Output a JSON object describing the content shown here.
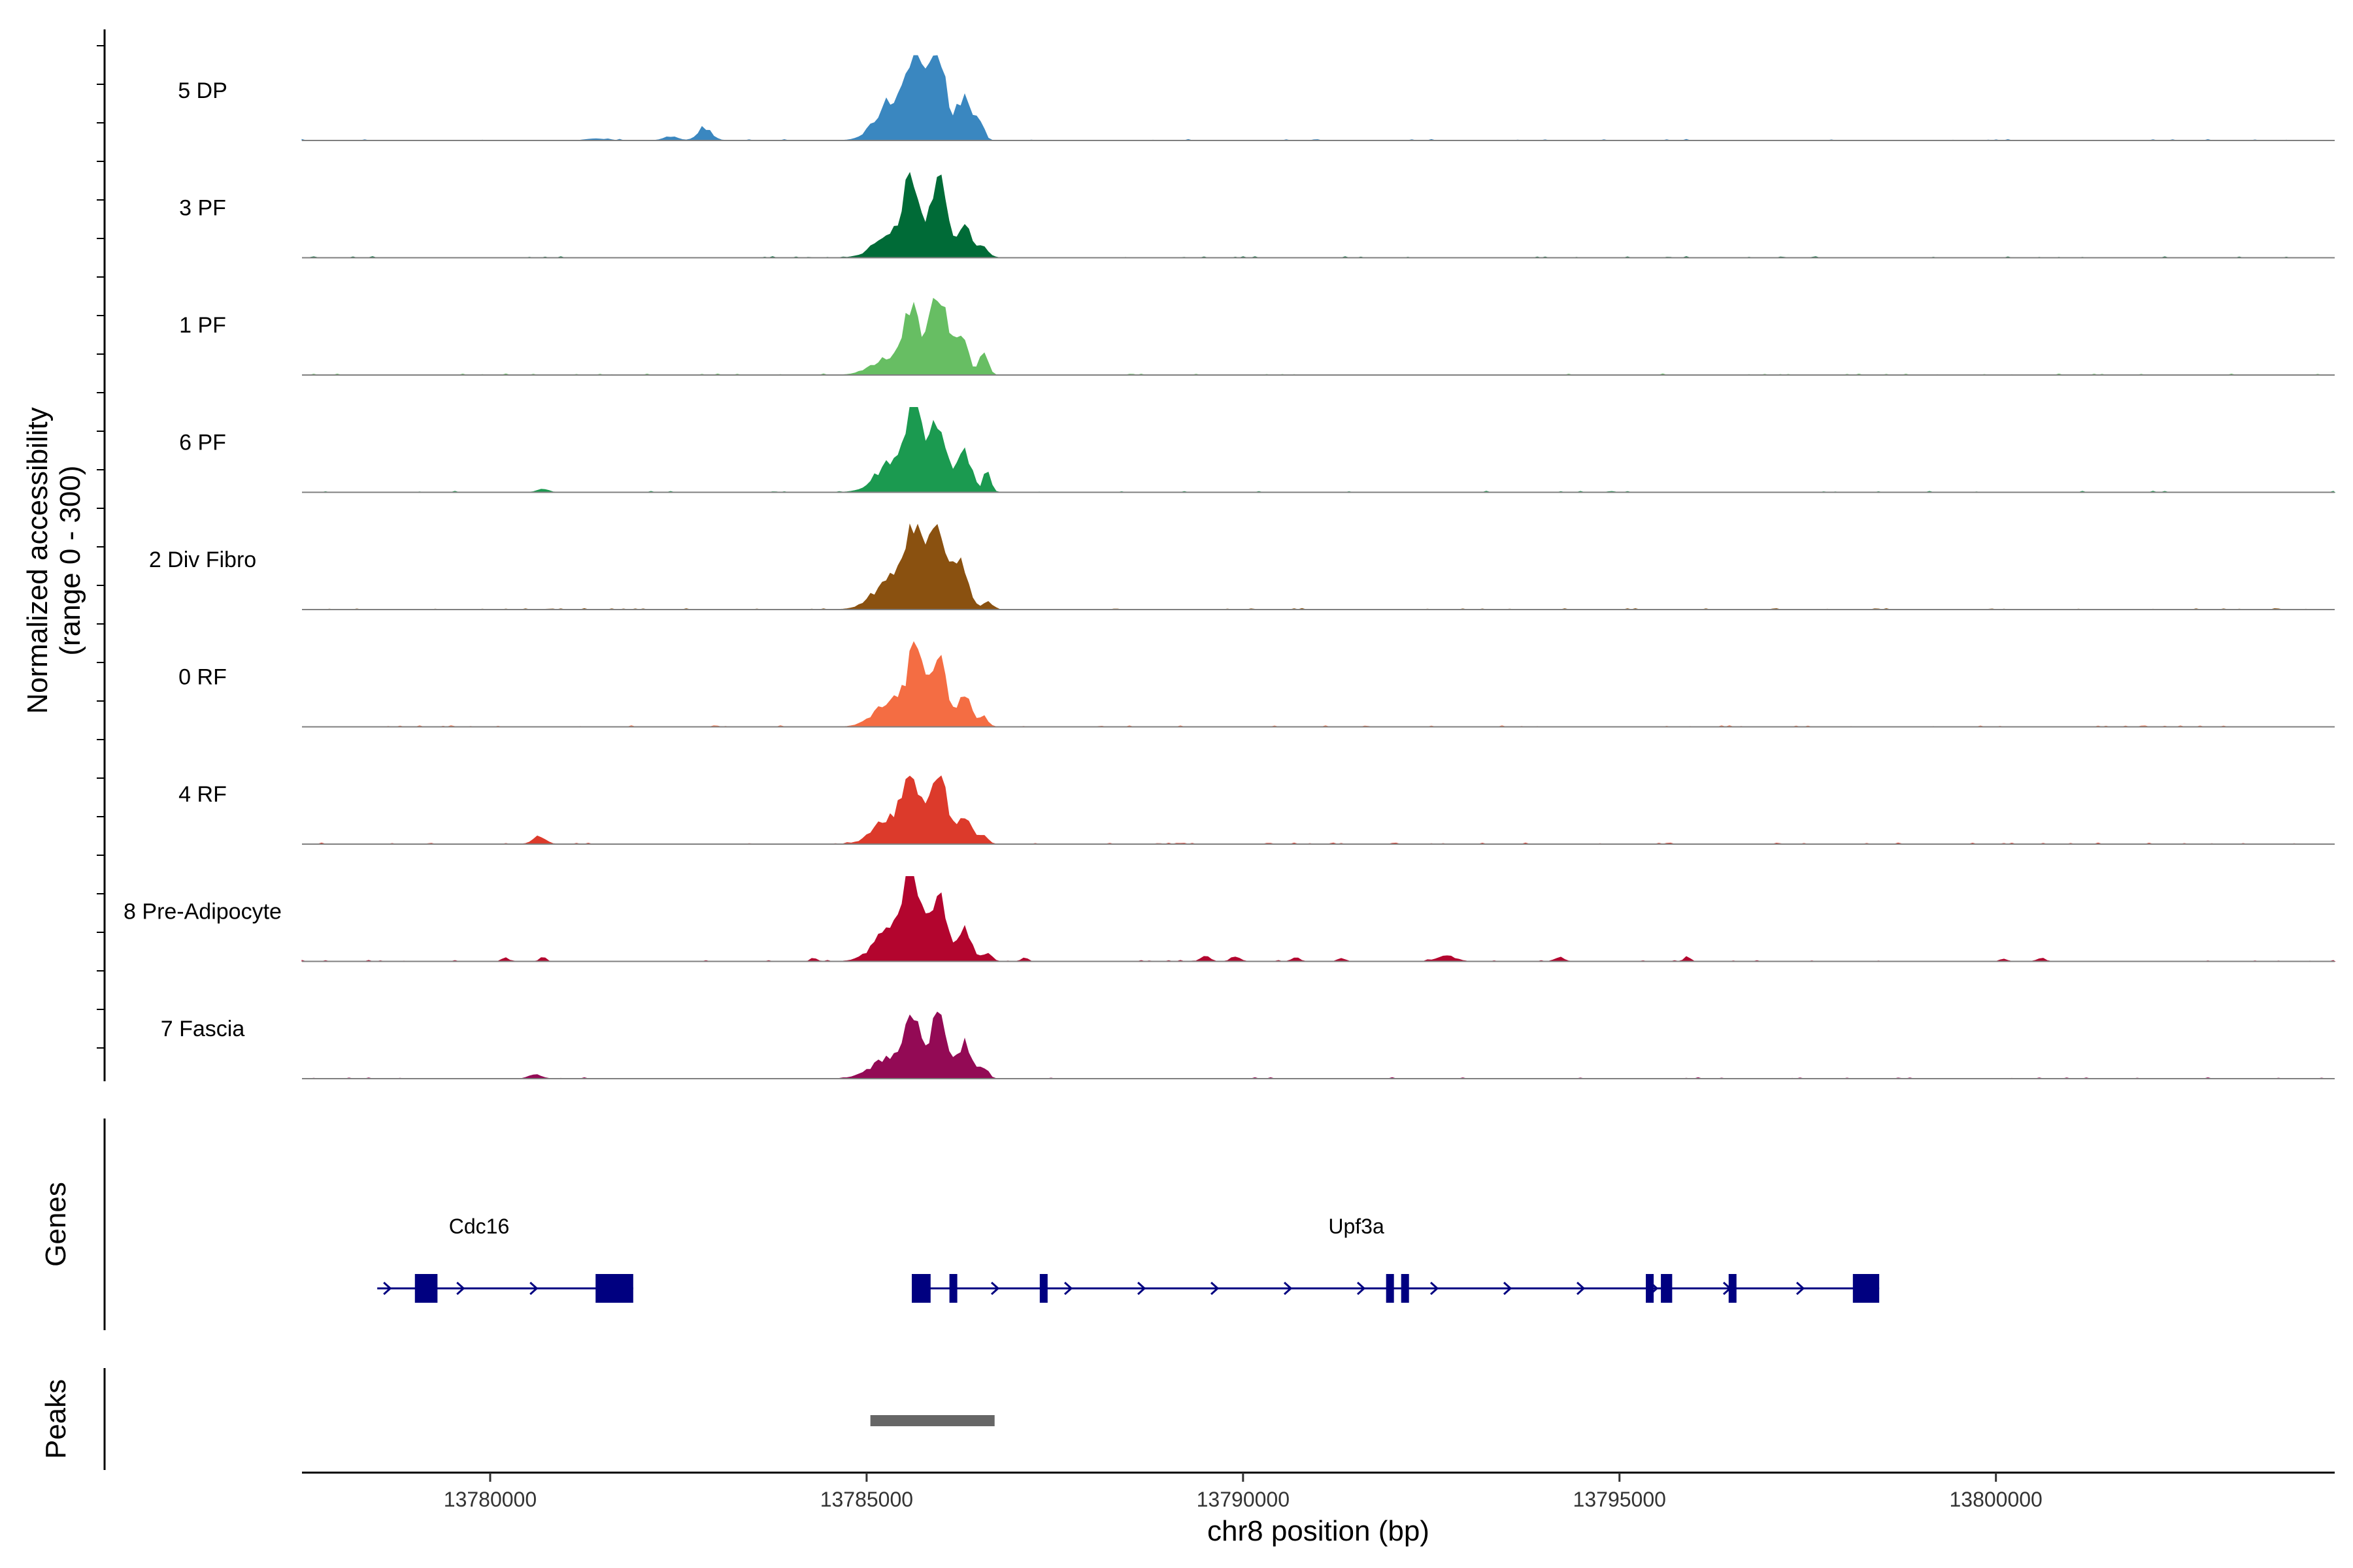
{
  "chart_data": {
    "type": "area",
    "title": "",
    "ylabel": "Normalized accessibility",
    "ylabel_range": "(range 0 - 300)",
    "xlabel": "chr8 position (bp)",
    "xlim": [
      13777500,
      13804500
    ],
    "ylim": [
      0,
      300
    ],
    "x_ticks": [
      13780000,
      13785000,
      13790000,
      13795000,
      13800000
    ],
    "x_tick_labels": [
      "13780000",
      "13785000",
      "13790000",
      "13795000",
      "13800000"
    ],
    "tracks": [
      {
        "name": "5 DP",
        "color": "#3A87C0",
        "peaks": [
          [
            13785350,
            140,
            210
          ],
          [
            13785650,
            290,
            110
          ],
          [
            13785950,
            260,
            120
          ],
          [
            13786300,
            150,
            90
          ],
          [
            13786500,
            60,
            60
          ],
          [
            13782400,
            14,
            90
          ],
          [
            13782850,
            45,
            90
          ],
          [
            13781400,
            6,
            120
          ]
        ]
      },
      {
        "name": "3 PF",
        "color": "#006B37",
        "peaks": [
          [
            13785350,
            90,
            220
          ],
          [
            13785600,
            260,
            100
          ],
          [
            13785950,
            270,
            110
          ],
          [
            13786300,
            110,
            90
          ],
          [
            13786550,
            40,
            60
          ]
        ]
      },
      {
        "name": "1 PF",
        "color": "#67BE63",
        "peaks": [
          [
            13785300,
            60,
            220
          ],
          [
            13785600,
            230,
            100
          ],
          [
            13785950,
            290,
            110
          ],
          [
            13786250,
            140,
            90
          ],
          [
            13786550,
            70,
            60
          ]
        ]
      },
      {
        "name": "6 PF",
        "color": "#1B9A50",
        "peaks": [
          [
            13785400,
            120,
            230
          ],
          [
            13785650,
            280,
            100
          ],
          [
            13785950,
            220,
            110
          ],
          [
            13786300,
            140,
            90
          ],
          [
            13786600,
            70,
            50
          ],
          [
            13780700,
            12,
            70
          ]
        ]
      },
      {
        "name": "2 Div Fibro",
        "color": "#8A5110",
        "peaks": [
          [
            13785350,
            110,
            230
          ],
          [
            13785650,
            260,
            110
          ],
          [
            13785950,
            300,
            110
          ],
          [
            13786250,
            170,
            100
          ],
          [
            13786600,
            25,
            60
          ]
        ]
      },
      {
        "name": "0 RF",
        "color": "#F46D43",
        "peaks": [
          [
            13785350,
            90,
            220
          ],
          [
            13785650,
            240,
            100
          ],
          [
            13785950,
            250,
            110
          ],
          [
            13786300,
            110,
            90
          ],
          [
            13786550,
            35,
            60
          ]
        ]
      },
      {
        "name": "4 RF",
        "color": "#DC3A2B",
        "peaks": [
          [
            13785350,
            100,
            220
          ],
          [
            13785600,
            200,
            100
          ],
          [
            13785950,
            240,
            110
          ],
          [
            13786300,
            100,
            90
          ],
          [
            13786550,
            30,
            60
          ],
          [
            13780650,
            30,
            80
          ]
        ]
      },
      {
        "name": "8 Pre-Adipocyte",
        "color": "#B3052E",
        "peaks": [
          [
            13785350,
            120,
            220
          ],
          [
            13785600,
            300,
            100
          ],
          [
            13785950,
            220,
            110
          ],
          [
            13786300,
            120,
            90
          ],
          [
            13786600,
            30,
            60
          ],
          [
            13780200,
            14,
            40
          ],
          [
            13780700,
            14,
            40
          ],
          [
            13784300,
            12,
            40
          ],
          [
            13787100,
            14,
            40
          ],
          [
            13789500,
            18,
            60
          ],
          [
            13789900,
            16,
            60
          ],
          [
            13790700,
            14,
            50
          ],
          [
            13791300,
            12,
            40
          ],
          [
            13792700,
            18,
            120
          ],
          [
            13794200,
            14,
            60
          ],
          [
            13795900,
            16,
            40
          ],
          [
            13800100,
            10,
            40
          ],
          [
            13800600,
            12,
            50
          ]
        ]
      },
      {
        "name": "7 Fascia",
        "color": "#930A55",
        "peaks": [
          [
            13785300,
            70,
            230
          ],
          [
            13785600,
            220,
            100
          ],
          [
            13785950,
            210,
            110
          ],
          [
            13786300,
            120,
            90
          ],
          [
            13786550,
            40,
            60
          ],
          [
            13780600,
            14,
            80
          ]
        ]
      }
    ],
    "genes": [
      {
        "name": "Cdc16",
        "start": 13778500,
        "end": 13781900,
        "exons": [
          [
            13779000,
            13779300
          ],
          [
            13781400,
            13781900
          ]
        ]
      },
      {
        "name": "Upf3a",
        "start": 13785600,
        "end": 13798450,
        "exons": [
          [
            13785600,
            13785850
          ],
          [
            13786100,
            13786200
          ],
          [
            13787300,
            13787400
          ],
          [
            13791900,
            13792000
          ],
          [
            13792100,
            13792200
          ],
          [
            13795350,
            13795420
          ],
          [
            13795550,
            13795700
          ],
          [
            13796450,
            13796550
          ],
          [
            13798100,
            13798450
          ]
        ]
      }
    ],
    "gene_track_label": "Genes",
    "peak_track_label": "Peaks",
    "peak_regions": [
      [
        13785050,
        13786700
      ]
    ],
    "peak_region_color": "#666666",
    "gene_color": "#000080"
  }
}
